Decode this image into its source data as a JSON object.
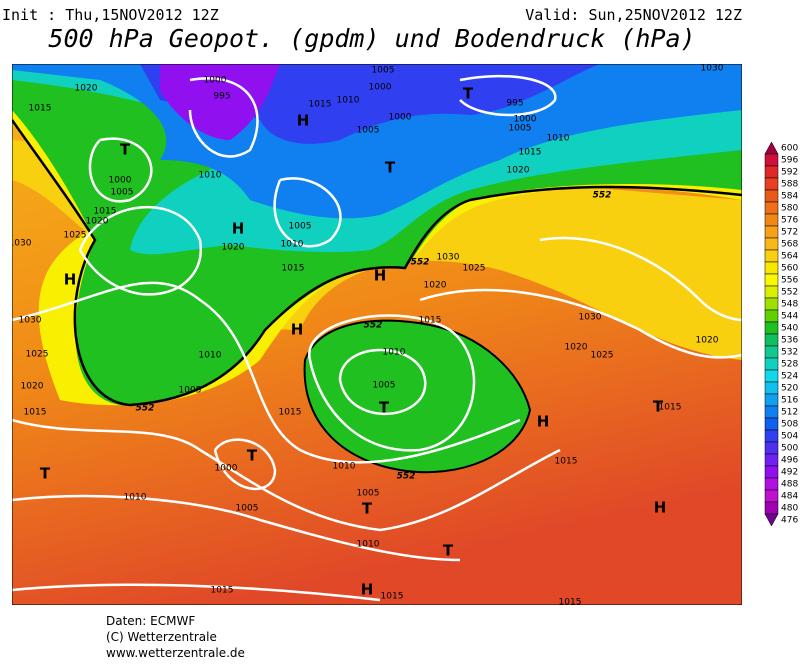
{
  "header": {
    "init": "Init : Thu,15NOV2012 12Z",
    "valid": "Valid: Sun,25NOV2012 12Z",
    "title": "500 hPa Geopot. (gpdm) und Bodendruck (hPa)"
  },
  "map": {
    "labels": [
      "1020",
      "1015",
      "1000",
      "995",
      "H",
      "1010",
      "1005",
      "1000",
      "1015",
      "1005",
      "1000",
      "T",
      "995",
      "1000",
      "1005",
      "1010",
      "1015",
      "1020",
      "1030",
      "T",
      "1000",
      "1005",
      "1010",
      "1015",
      "1020",
      "1025",
      "1030",
      "H",
      "H",
      "1020",
      "T",
      "1005",
      "1010",
      "1015",
      "H",
      "1030",
      "1025",
      "1020",
      "H",
      "1015",
      "1030",
      "1020",
      "1025",
      "1020",
      "1030",
      "1010",
      "1025",
      "1005",
      "1020",
      "1015",
      "1010",
      "1005",
      "T",
      "1015",
      "H",
      "1015",
      "T",
      "1000",
      "T",
      "T",
      "1010",
      "1015",
      "1005",
      "T",
      "T",
      "1010",
      "1005",
      "1010",
      "H",
      "1015",
      "H",
      "1015",
      "1015"
    ],
    "contour_labels": [
      "552",
      "552",
      "552",
      "552",
      "552"
    ]
  },
  "colorbar": {
    "levels": [
      600,
      596,
      592,
      588,
      584,
      580,
      576,
      572,
      568,
      564,
      560,
      556,
      552,
      548,
      544,
      540,
      536,
      532,
      528,
      524,
      520,
      516,
      512,
      508,
      504,
      500,
      496,
      492,
      488,
      484,
      480,
      476
    ],
    "colors": [
      "#a00040",
      "#d0103a",
      "#e02828",
      "#e84020",
      "#e85a18",
      "#f07018",
      "#f08818",
      "#f8a018",
      "#f8b818",
      "#f8d010",
      "#f8e800",
      "#f8f800",
      "#d8f000",
      "#a0e000",
      "#60d000",
      "#20c020",
      "#10c060",
      "#10c890",
      "#10d0c0",
      "#10d8e8",
      "#10c0f0",
      "#10a0f0",
      "#1080f0",
      "#1060f0",
      "#3040f0",
      "#5030f0",
      "#7020f0",
      "#9010f0",
      "#b010e0",
      "#c010d0",
      "#a000b0",
      "#700090"
    ]
  },
  "footer": [
    "Daten: ECMWF",
    "(C) Wetterzentrale",
    "www.wetterzentrale.de"
  ]
}
